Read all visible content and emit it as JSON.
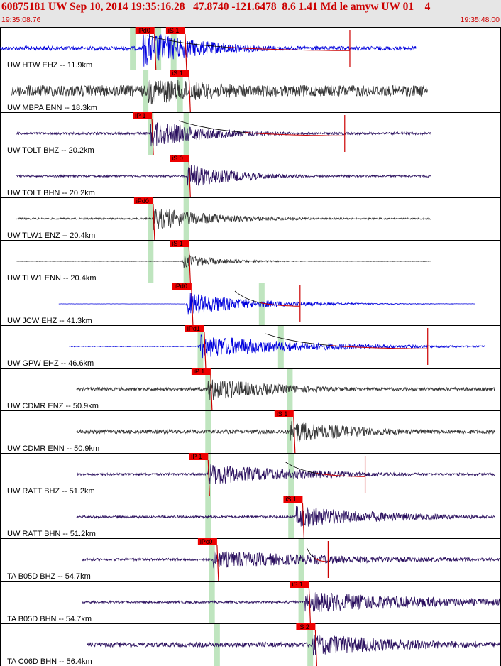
{
  "header": {
    "title": "60875181 UW Sep 10, 2014 19:35:16.28   47.8740 -121.6478  8.6 1.41 Md le amyw UW 01    4",
    "start_time": "19:35:08.76",
    "end_time": "19:35:48.00"
  },
  "colors": {
    "header_bg": "#e6e6e6",
    "header_text": "#cc0000",
    "pick_box": "#ee0000",
    "pick_line": "#cc0000",
    "shade": "#bfe5bf",
    "trace_blue": "#0000dd",
    "trace_gray": "#333333",
    "trace_purple": "#2a0f5e",
    "coda_line": "#000000"
  },
  "chart_data": {
    "type": "seismogram",
    "time_start": "19:35:08.76",
    "time_end": "19:35:48.00",
    "x_unit": "seconds after 19:35:08.76",
    "xlim": [
      0,
      39.24
    ],
    "traces": [
      {
        "label": "UW HTW EHZ -- 11.9km",
        "color": "blue",
        "start": 0.0,
        "end": 32.6,
        "amp": 0.1,
        "onset": 11.2,
        "peak": 0.95,
        "decay": 5,
        "picks": [
          {
            "label": "iPd0",
            "t": 10.6
          },
          {
            "label": "iS 1",
            "t": 13.0
          }
        ],
        "shades": [
          10.4,
          12.4,
          13.6
        ],
        "coda": [
          11.5,
          27.4
        ],
        "spike": 27.4
      },
      {
        "label": "UW MBPA ENN -- 18.3km",
        "color": "gray",
        "start": 0.9,
        "end": 33.5,
        "amp": 0.28,
        "onset": 11.6,
        "peak": 0.7,
        "decay": 9,
        "picks": [
          {
            "label": "iS 1",
            "t": 13.3
          }
        ],
        "shades": [
          11.4,
          14.1
        ],
        "coda": null,
        "spike": null
      },
      {
        "label": "UW TOLT BHZ -- 20.2km",
        "color": "purple",
        "start": 1.3,
        "end": 33.8,
        "amp": 0.06,
        "onset": 11.8,
        "peak": 0.7,
        "decay": 5,
        "picks": [
          {
            "label": "iP 1",
            "t": 10.4
          }
        ],
        "shades": [
          11.8,
          14.6
        ],
        "coda": [
          14.0,
          27.0
        ],
        "spike": 27.0
      },
      {
        "label": "UW TOLT BHN -- 20.2km",
        "color": "purple",
        "start": 1.3,
        "end": 33.8,
        "amp": 0.05,
        "onset": 14.7,
        "peak": 0.65,
        "decay": 4,
        "picks": [
          {
            "label": "iS 0",
            "t": 13.3
          }
        ],
        "shades": [
          14.6
        ],
        "coda": null,
        "spike": null
      },
      {
        "label": "UW TLW1 ENZ -- 20.4km",
        "color": "gray",
        "start": 1.3,
        "end": 33.8,
        "amp": 0.04,
        "onset": 12.0,
        "peak": 0.6,
        "decay": 5,
        "picks": [
          {
            "label": "iPd0",
            "t": 10.5
          }
        ],
        "shades": [
          11.8,
          14.6
        ],
        "coda": null,
        "spike": null
      },
      {
        "label": "UW TLW1 ENN -- 20.4km",
        "color": "gray",
        "start": 1.3,
        "end": 33.8,
        "amp": 0.01,
        "onset": 14.4,
        "peak": 0.35,
        "decay": 3,
        "picks": [
          {
            "label": "iS 1",
            "t": 13.3
          }
        ],
        "shades": [
          11.8,
          14.6
        ],
        "coda": null,
        "spike": null
      },
      {
        "label": "UW JCW EHZ -- 41.3km",
        "color": "blue",
        "start": 4.6,
        "end": 37.2,
        "amp": 0.005,
        "onset": 14.7,
        "peak": 0.6,
        "decay": 5,
        "picks": [
          {
            "label": "iPd0",
            "t": 13.5
          }
        ],
        "shades": [
          20.5
        ],
        "coda": [
          18.4,
          23.5
        ],
        "spike": 23.5
      },
      {
        "label": "UW GPW EHZ -- 46.6km",
        "color": "blue",
        "start": 5.4,
        "end": 38.0,
        "amp": 0.02,
        "onset": 15.7,
        "peak": 0.6,
        "decay": 8,
        "picks": [
          {
            "label": "iPd1",
            "t": 14.5
          }
        ],
        "shades": [
          15.7,
          22.0
        ],
        "coda": [
          20.8,
          33.5
        ],
        "spike": 33.5
      },
      {
        "label": "UW CDMR ENZ -- 50.9km",
        "color": "gray",
        "start": 6.0,
        "end": 38.8,
        "amp": 0.08,
        "onset": 16.3,
        "peak": 0.6,
        "decay": 6,
        "picks": [
          {
            "label": "iP 1",
            "t": 15.0
          }
        ],
        "shades": [
          16.3,
          22.7
        ],
        "coda": null,
        "spike": null
      },
      {
        "label": "UW CDMR ENN -- 50.9km",
        "color": "gray",
        "start": 6.0,
        "end": 38.8,
        "amp": 0.1,
        "onset": 22.7,
        "peak": 0.6,
        "decay": 6,
        "picks": [
          {
            "label": "iS 1",
            "t": 21.5
          }
        ],
        "shades": [
          16.3,
          22.7
        ],
        "coda": null,
        "spike": null
      },
      {
        "label": "UW RATT BHZ -- 51.2km",
        "color": "purple",
        "start": 6.0,
        "end": 38.8,
        "amp": 0.06,
        "onset": 16.3,
        "peak": 0.55,
        "decay": 8,
        "picks": [
          {
            "label": "iP 1",
            "t": 14.8
          }
        ],
        "shades": [
          16.3,
          22.8
        ],
        "coda": [
          22.3,
          28.6
        ],
        "spike": 28.6
      },
      {
        "label": "UW RATT BHN -- 51.2km",
        "color": "purple",
        "start": 6.0,
        "end": 38.8,
        "amp": 0.06,
        "onset": 23.2,
        "peak": 0.55,
        "decay": 8,
        "picks": [
          {
            "label": "iS 1",
            "t": 22.2
          }
        ],
        "shades": [
          16.3,
          22.8
        ],
        "coda": null,
        "spike": null
      },
      {
        "label": "TA B05D BHZ -- 54.7km",
        "color": "purple",
        "start": 6.4,
        "end": 39.2,
        "amp": 0.06,
        "onset": 16.7,
        "peak": 0.45,
        "decay": 12,
        "picks": [
          {
            "label": "iPc0",
            "t": 15.5
          }
        ],
        "shades": [
          16.6,
          23.6
        ],
        "coda": [
          24.0,
          25.7
        ],
        "spike": 25.7
      },
      {
        "label": "TA B05D BHN -- 54.7km",
        "color": "purple",
        "start": 6.4,
        "end": 39.2,
        "amp": 0.06,
        "onset": 23.9,
        "peak": 0.55,
        "decay": 12,
        "picks": [
          {
            "label": "iS 1",
            "t": 22.7
          }
        ],
        "shades": [
          16.6,
          23.6
        ],
        "coda": null,
        "spike": null
      },
      {
        "label": "TA C06D BHN -- 56.4km",
        "color": "purple",
        "start": 6.8,
        "end": 39.2,
        "amp": 0.12,
        "onset": 24.5,
        "peak": 0.55,
        "decay": 10,
        "picks": [
          {
            "label": "iS 2",
            "t": 23.2
          }
        ],
        "shades": [
          17.0,
          24.3
        ],
        "coda": null,
        "spike": null
      }
    ]
  }
}
